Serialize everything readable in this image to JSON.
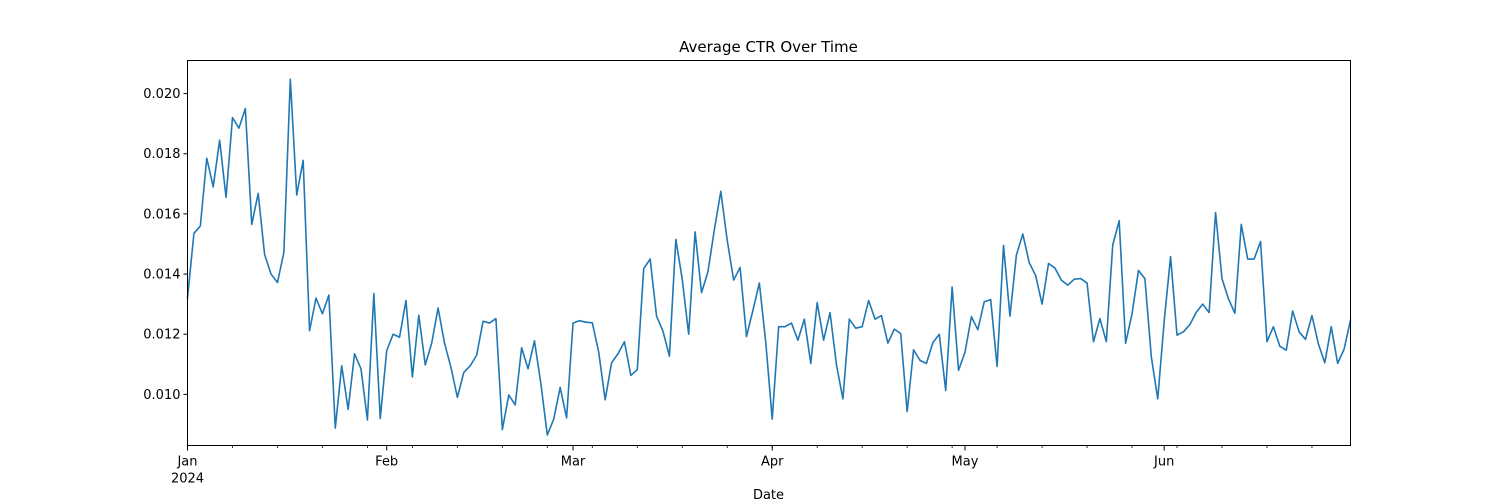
{
  "chart_data": {
    "type": "line",
    "title": "Average CTR Over Time",
    "xlabel": "Date",
    "ylabel": "",
    "x_start": "2024-01-01",
    "x_end": "2024-06-30",
    "xlim": [
      "2024-01-01",
      "2024-06-30"
    ],
    "ylim": [
      0.0083,
      0.0211
    ],
    "grid": false,
    "legend": "none",
    "line_color": "#1f77b4",
    "x_ticks": [
      {
        "date": "2024-01-01",
        "label": "Jan",
        "sublabel": "2024"
      },
      {
        "date": "2024-02-01",
        "label": "Feb",
        "sublabel": ""
      },
      {
        "date": "2024-03-01",
        "label": "Mar",
        "sublabel": ""
      },
      {
        "date": "2024-04-01",
        "label": "Apr",
        "sublabel": ""
      },
      {
        "date": "2024-05-01",
        "label": "May",
        "sublabel": ""
      },
      {
        "date": "2024-06-01",
        "label": "Jun",
        "sublabel": ""
      }
    ],
    "y_ticks": [
      {
        "value": 0.01,
        "label": "0.010"
      },
      {
        "value": 0.012,
        "label": "0.012"
      },
      {
        "value": 0.014,
        "label": "0.014"
      },
      {
        "value": 0.016,
        "label": "0.016"
      },
      {
        "value": 0.018,
        "label": "0.018"
      },
      {
        "value": 0.02,
        "label": "0.020"
      }
    ],
    "series": [
      {
        "values": [
          0.0132,
          0.01535,
          0.0156,
          0.01785,
          0.0169,
          0.01845,
          0.01655,
          0.0192,
          0.01885,
          0.0195,
          0.01565,
          0.01668,
          0.01465,
          0.014,
          0.01372,
          0.01472,
          0.02048,
          0.01663,
          0.01778,
          0.01212,
          0.0132,
          0.01268,
          0.0133,
          0.00888,
          0.01095,
          0.0095,
          0.01135,
          0.01085,
          0.00915,
          0.01335,
          0.0092,
          0.01145,
          0.012,
          0.0119,
          0.01312,
          0.01058,
          0.01263,
          0.01098,
          0.0117,
          0.01287,
          0.0117,
          0.0109,
          0.0099,
          0.01073,
          0.01095,
          0.0113,
          0.01243,
          0.01237,
          0.01252,
          0.00883,
          0.00998,
          0.00965,
          0.01155,
          0.01085,
          0.01178,
          0.01035,
          0.00865,
          0.00918,
          0.01023,
          0.00922,
          0.01237,
          0.01245,
          0.0124,
          0.01238,
          0.0114,
          0.00982,
          0.01105,
          0.01135,
          0.01175,
          0.01063,
          0.01082,
          0.01418,
          0.0145,
          0.0126,
          0.0121,
          0.01127,
          0.01515,
          0.01382,
          0.012,
          0.0154,
          0.01338,
          0.01408,
          0.01548,
          0.01675,
          0.01512,
          0.0138,
          0.01422,
          0.01192,
          0.0128,
          0.0137,
          0.01172,
          0.00918,
          0.01225,
          0.01225,
          0.01237,
          0.0118,
          0.0125,
          0.01103,
          0.01305,
          0.0118,
          0.01272,
          0.01098,
          0.00985,
          0.0125,
          0.0122,
          0.01225,
          0.01312,
          0.0125,
          0.01262,
          0.0117,
          0.01217,
          0.01202,
          0.00943,
          0.01148,
          0.01113,
          0.01103,
          0.01172,
          0.012,
          0.01013,
          0.01357,
          0.0108,
          0.0114,
          0.01258,
          0.01215,
          0.01308,
          0.01315,
          0.01093,
          0.01495,
          0.0126,
          0.01463,
          0.01533,
          0.01438,
          0.01395,
          0.013,
          0.01435,
          0.0142,
          0.0138,
          0.01363,
          0.01383,
          0.01385,
          0.0137,
          0.01175,
          0.01252,
          0.01175,
          0.01497,
          0.01577,
          0.0117,
          0.01268,
          0.01412,
          0.01385,
          0.01125,
          0.00985,
          0.01243,
          0.01458,
          0.01197,
          0.01208,
          0.01232,
          0.01273,
          0.013,
          0.01272,
          0.01605,
          0.01385,
          0.01318,
          0.0127,
          0.01565,
          0.0145,
          0.0145,
          0.01508,
          0.01175,
          0.01225,
          0.0116,
          0.01147,
          0.01277,
          0.01208,
          0.01183,
          0.01262,
          0.01168,
          0.01105,
          0.01225,
          0.01103,
          0.0115,
          0.01247
        ]
      }
    ]
  }
}
